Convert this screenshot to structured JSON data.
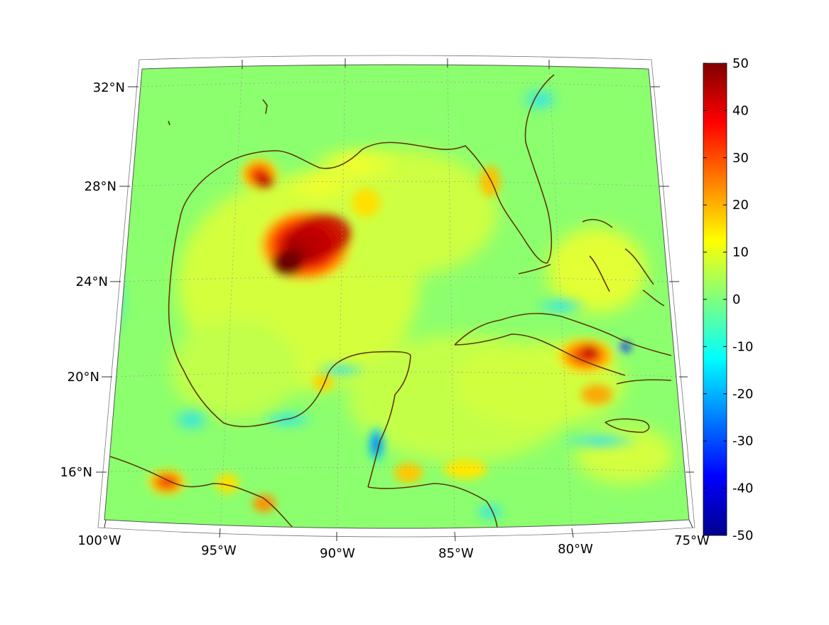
{
  "map": {
    "projection": "conic",
    "lon_range": [
      -100,
      -75
    ],
    "lat_range": [
      14,
      33
    ],
    "lat_labels": [
      "32°N",
      "28°N",
      "24°N",
      "20°N",
      "16°N"
    ],
    "lon_labels": [
      "100°W",
      "95°W",
      "90°W",
      "85°W",
      "80°W",
      "75°W"
    ],
    "lat_values": [
      32,
      28,
      24,
      20,
      16
    ],
    "lon_values": [
      -100,
      -95,
      -90,
      -85,
      -80,
      -75
    ],
    "coastline_color": "#5c3a0a",
    "grid": true
  },
  "colorbar": {
    "min": -50,
    "max": 50,
    "ticks": [
      "50",
      "40",
      "30",
      "20",
      "10",
      "0",
      "-10",
      "-20",
      "-30",
      "-40",
      "-50"
    ],
    "colormap": "jet"
  }
}
